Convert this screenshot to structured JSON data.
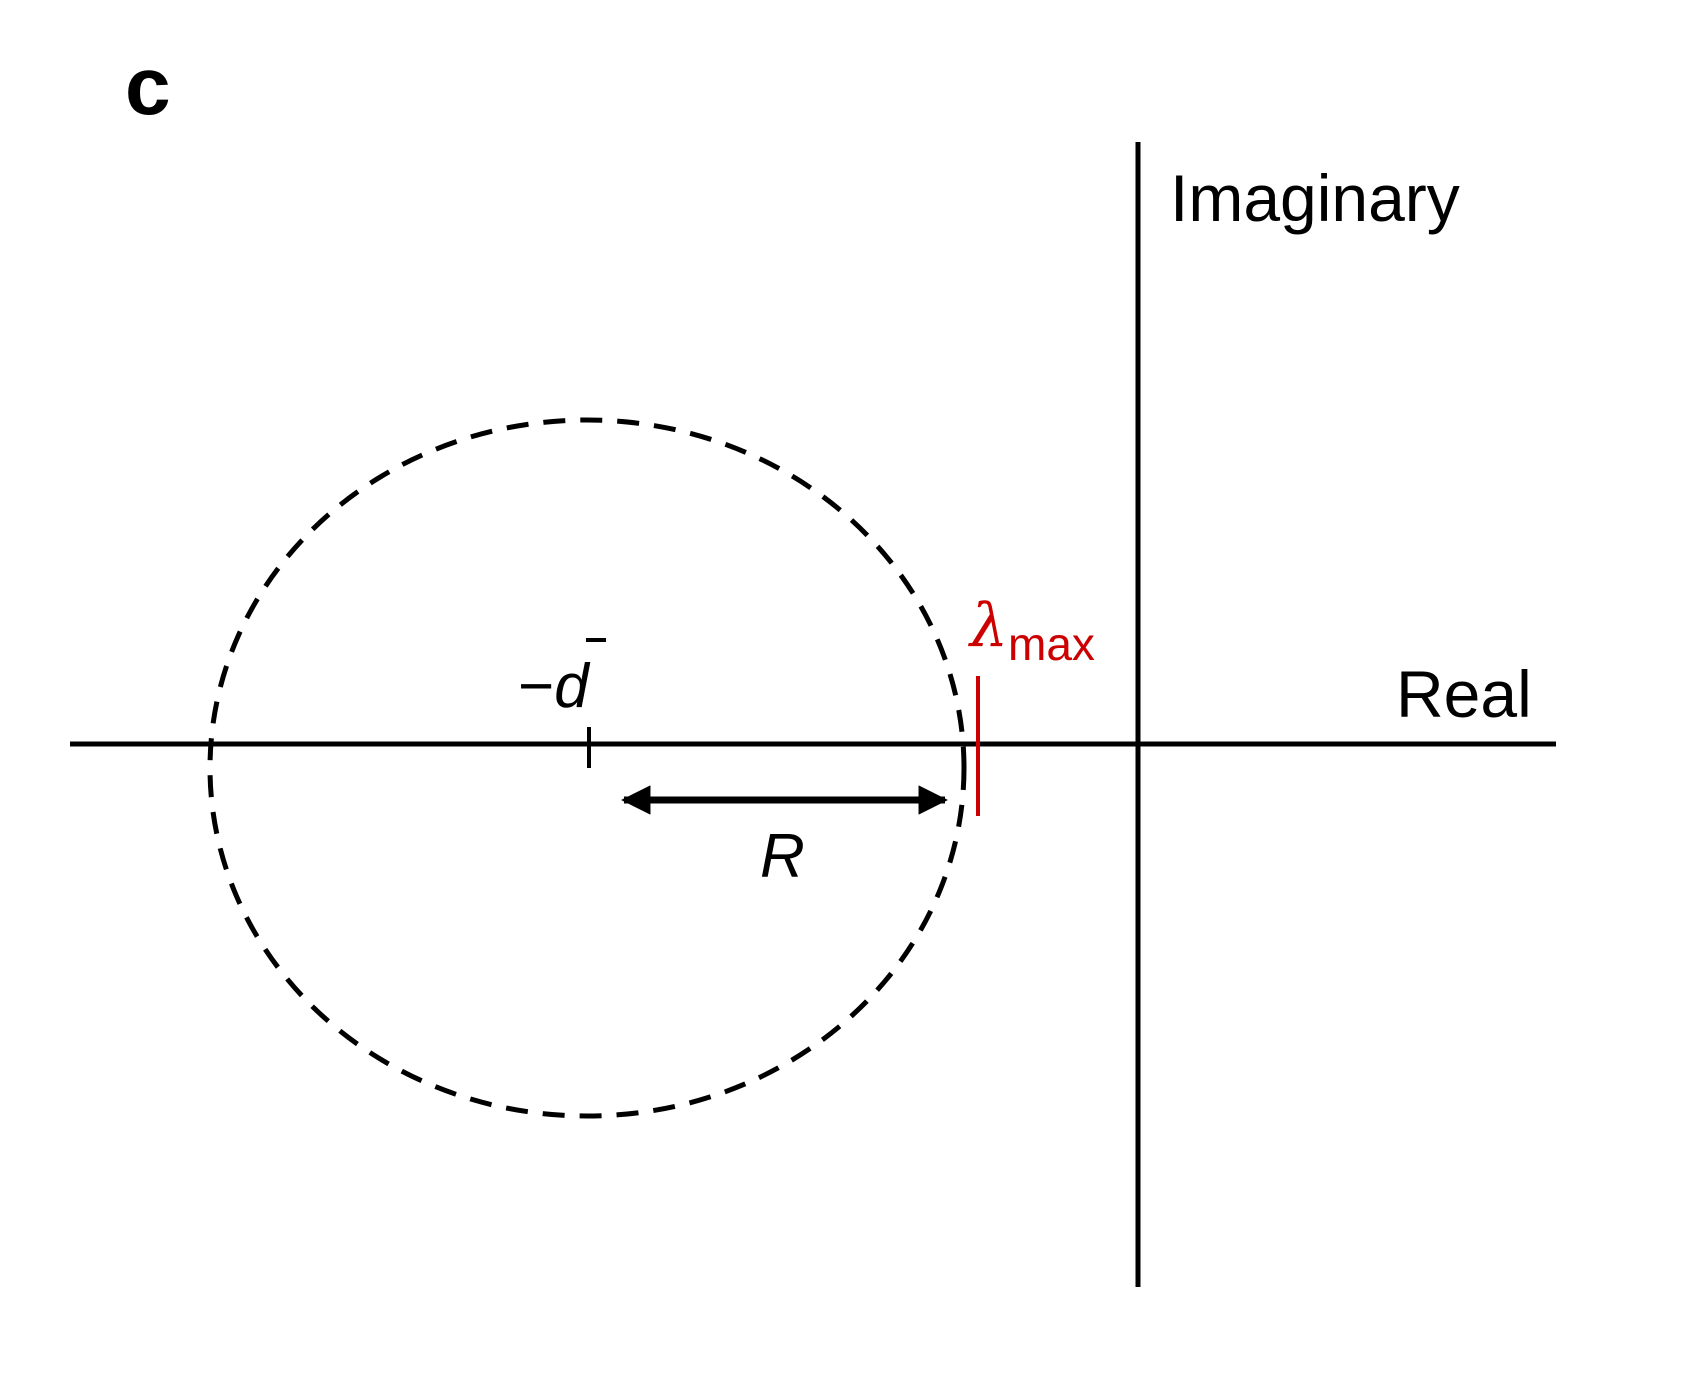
{
  "panel": {
    "letter": "c"
  },
  "axes": {
    "real_label": "Real",
    "imaginary_label": "Imaginary"
  },
  "annotations": {
    "center_minus": "−",
    "center_symbol": "d",
    "radius_label": "R",
    "lambda_symbol": "λ",
    "lambda_subscript": "max"
  },
  "colors": {
    "axes": "#000000",
    "circle": "#000000",
    "lambda_marker": "#cc0000"
  }
}
